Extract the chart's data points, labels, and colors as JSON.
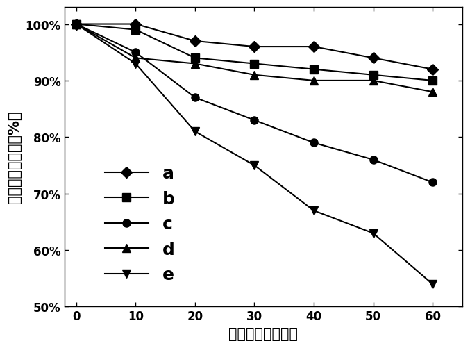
{
  "x": [
    0,
    10,
    20,
    30,
    40,
    50,
    60
  ],
  "series": {
    "a": [
      100,
      100,
      97,
      96,
      96,
      94,
      92
    ],
    "b": [
      100,
      99,
      94,
      93,
      92,
      91,
      90
    ],
    "c": [
      100,
      95,
      87,
      83,
      79,
      76,
      72
    ],
    "d": [
      100,
      94,
      93,
      91,
      90,
      90,
      88
    ],
    "e": [
      100,
      93,
      81,
      75,
      67,
      63,
      54
    ]
  },
  "markers": {
    "a": "D",
    "b": "s",
    "c": "o",
    "d": "^",
    "e": "v"
  },
  "xlabel": "照射时间（分钟）",
  "ylabel": "甲基橙剩余比例（%）",
  "xlim": [
    -2,
    65
  ],
  "ylim": [
    50,
    103
  ],
  "yticks": [
    50,
    60,
    70,
    80,
    90,
    100
  ],
  "ytick_labels": [
    "50%",
    "60%",
    "70%",
    "80%",
    "90%",
    "100%"
  ],
  "xticks": [
    0,
    10,
    20,
    30,
    40,
    50,
    60
  ],
  "legend_order": [
    "a",
    "b",
    "c",
    "d",
    "e"
  ],
  "legend_fontsize": 18,
  "axis_label_fontsize": 15,
  "tick_fontsize": 12,
  "line_width": 1.5,
  "marker_size": 8,
  "background_color": "#ffffff"
}
